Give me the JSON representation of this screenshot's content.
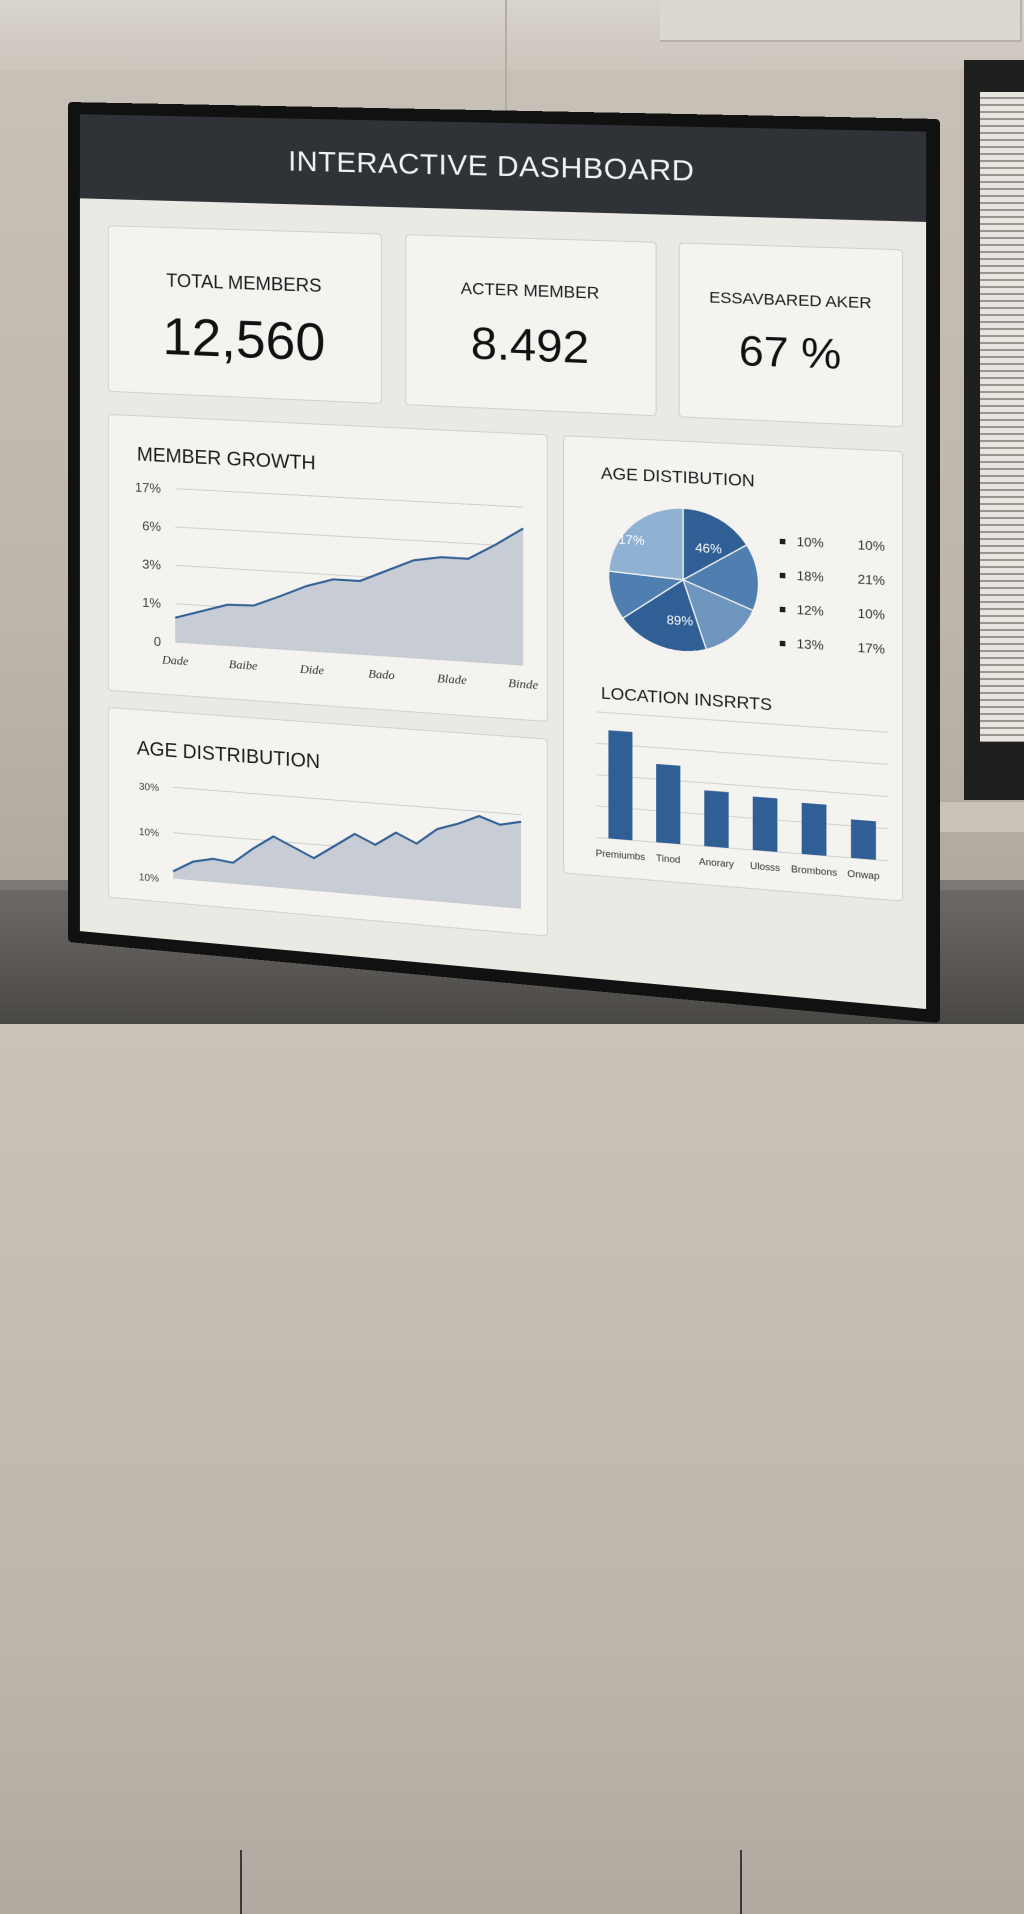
{
  "dashboard": {
    "title": "INTERACTIVE DASHBOARD",
    "kpis": [
      {
        "label": "TOTAL MEMBERS",
        "value": "12,560"
      },
      {
        "label": "ACTER MEMBER",
        "value": "8.492"
      },
      {
        "label": "ESSAVBARED AKER",
        "value": "67 %"
      }
    ],
    "member_growth": {
      "title": "MEMBER GROWTH"
    },
    "age_pie": {
      "title": "AGE DISTIBUTION"
    },
    "age_area": {
      "title": "AGE DISTRIBUTION"
    },
    "location": {
      "title": "LOCATION INSRRTS"
    }
  },
  "colors": {
    "accent": "#2f5f94",
    "accent_light": "#8fb2d3",
    "accent_mid": "#4f7fb0",
    "area_fill": "#c3c8d1",
    "header_bg": "#2f3338"
  },
  "chart_data": [
    {
      "type": "area",
      "title": "MEMBER GROWTH",
      "y_tick_labels": [
        "17%",
        "6%",
        "3%",
        "1%",
        "0"
      ],
      "x_tick_labels": [
        "Dade",
        "Baibe",
        "Dide",
        "Bado",
        "Blade",
        "Binde"
      ],
      "ylim": [
        0,
        17
      ],
      "x": [
        0,
        1,
        2,
        3,
        4,
        5,
        6,
        7,
        8,
        9,
        10,
        11,
        12,
        13
      ],
      "values": [
        2.7,
        3.6,
        4.5,
        4.6,
        5.8,
        7.1,
        8.0,
        8.0,
        9.3,
        10.6,
        11.1,
        11.1,
        12.8,
        14.7
      ],
      "grid": true
    },
    {
      "type": "pie",
      "title": "AGE DISTIBUTION",
      "slice_labels": [
        "17%",
        "46%",
        "89%"
      ],
      "slices": [
        {
          "value": 16,
          "color": "#2f5f94"
        },
        {
          "value": 15,
          "color": "#4f7fb0"
        },
        {
          "value": 14,
          "color": "#6e96bf"
        },
        {
          "value": 20,
          "color": "#2f5f94"
        },
        {
          "value": 11,
          "color": "#4f7fb0"
        },
        {
          "value": 24,
          "color": "#8fb2d3"
        }
      ],
      "legend": [
        {
          "a": "10%",
          "b": "10%"
        },
        {
          "a": "18%",
          "b": "21%"
        },
        {
          "a": "12%",
          "b": "10%"
        },
        {
          "a": "13%",
          "b": "17%"
        }
      ],
      "legend_position": "right"
    },
    {
      "type": "bar",
      "title": "LOCATION INSRRTS",
      "categories": [
        "Premiumbs",
        "Tinod",
        "Anorary",
        "Ulosss",
        "Brombons",
        "Onwap"
      ],
      "values": [
        86,
        62,
        44,
        42,
        40,
        30
      ],
      "ylim": [
        0,
        100
      ],
      "grid": true
    },
    {
      "type": "area",
      "title": "AGE DISTRIBUTION",
      "y_tick_labels": [
        "30%",
        "10%",
        "10%"
      ],
      "ylim": [
        0,
        40
      ],
      "x": [
        0,
        1,
        2,
        3,
        4,
        5,
        6,
        7,
        8,
        9,
        10,
        11,
        12,
        13,
        14,
        15,
        16,
        17
      ],
      "values": [
        3,
        8,
        10,
        9,
        16,
        22,
        18,
        14,
        20,
        26,
        22,
        28,
        24,
        31,
        34,
        38,
        35,
        37
      ],
      "grid": true
    }
  ]
}
